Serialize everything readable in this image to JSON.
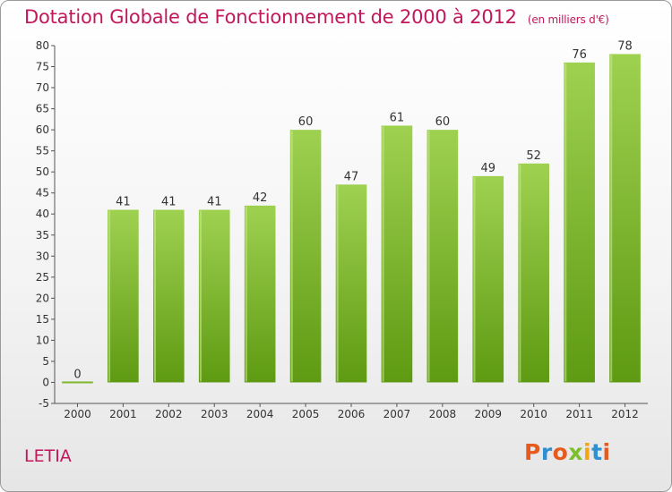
{
  "header": {
    "title": "Dotation Globale de Fonctionnement de 2000 à 2012",
    "subtitle": "(en milliers d'€)"
  },
  "footer": {
    "commune": "LETIA",
    "logo": {
      "text": "Proxiti",
      "letter_colors": [
        "#e65a1e",
        "#2f8fd1",
        "#e65a1e",
        "#7cbf2a",
        "#f2a516",
        "#2f8fd1",
        "#e65a1e"
      ]
    }
  },
  "chart_data": {
    "type": "bar",
    "categories": [
      "2000",
      "2001",
      "2002",
      "2003",
      "2004",
      "2005",
      "2006",
      "2007",
      "2008",
      "2009",
      "2010",
      "2011",
      "2012"
    ],
    "values": [
      0,
      41,
      41,
      41,
      42,
      60,
      47,
      61,
      60,
      49,
      52,
      76,
      78
    ],
    "data_labels": [
      "0",
      "41",
      "41",
      "41",
      "42",
      "60",
      "47",
      "61",
      "60",
      "49",
      "52",
      "76",
      "78"
    ],
    "ylim": [
      -5,
      80
    ],
    "yticks": [
      -5,
      0,
      5,
      10,
      15,
      20,
      25,
      30,
      35,
      40,
      45,
      50,
      55,
      60,
      65,
      70,
      75,
      80
    ],
    "grid": false,
    "bar_color_top": "#9fd151",
    "bar_color_bottom": "#5e9a12"
  }
}
